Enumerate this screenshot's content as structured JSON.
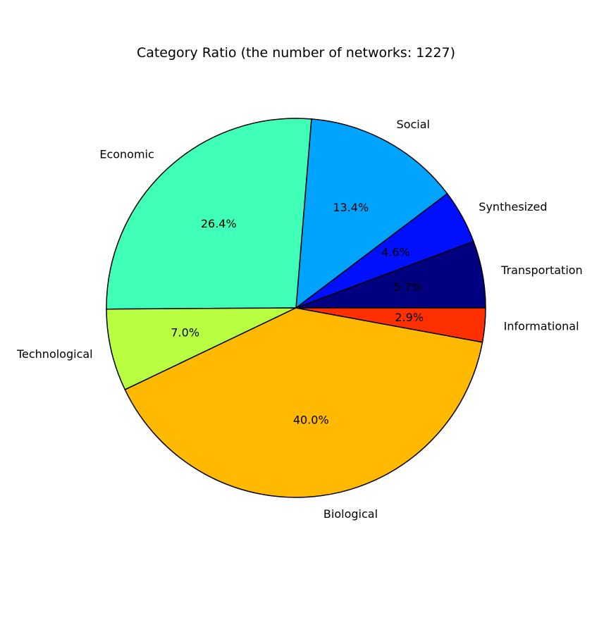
{
  "chart_data": {
    "type": "pie",
    "title": "Category Ratio (the number of networks: 1227)",
    "slices": [
      {
        "label": "Transportation",
        "value": 5.7,
        "pct_label": "5.7%",
        "color": "#000080"
      },
      {
        "label": "Synthesized",
        "value": 4.6,
        "pct_label": "4.6%",
        "color": "#0010ff"
      },
      {
        "label": "Social",
        "value": 13.4,
        "pct_label": "13.4%",
        "color": "#00a4ff"
      },
      {
        "label": "Economic",
        "value": 26.4,
        "pct_label": "26.4%",
        "color": "#40ffb7"
      },
      {
        "label": "Technological",
        "value": 7.0,
        "pct_label": "7.0%",
        "color": "#b7ff40"
      },
      {
        "label": "Biological",
        "value": 40.0,
        "pct_label": "40.0%",
        "color": "#ffb900"
      },
      {
        "label": "Informational",
        "value": 2.9,
        "pct_label": "2.9%",
        "color": "#ff3000"
      }
    ],
    "start_angle_deg": 0,
    "direction": "counterclockwise",
    "edge_color": "#000000",
    "legend": "none"
  }
}
